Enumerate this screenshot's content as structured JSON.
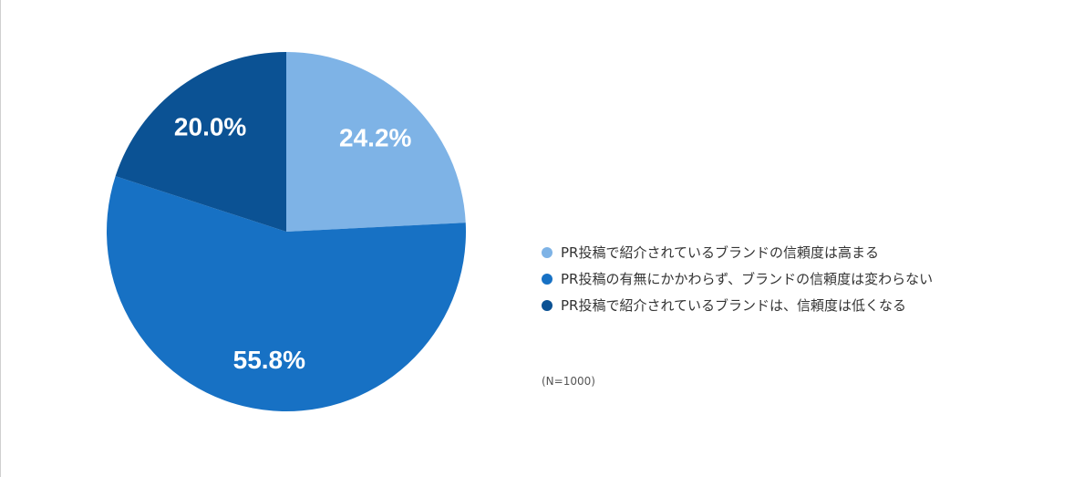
{
  "chart_data": {
    "type": "pie",
    "title": "",
    "categories": [
      "PR投稿で紹介されているブランドの信頼度は高まる",
      "PR投稿の有無にかかわらず、ブランドの信頼度は変わらない",
      "PR投稿で紹介されているブランドは、信頼度は低くなる"
    ],
    "values": [
      24.2,
      55.8,
      20.0
    ],
    "value_labels": [
      "24.2%",
      "55.8%",
      "20.0%"
    ],
    "colors": [
      "#7eb3e6",
      "#1771c4",
      "#0b5294"
    ],
    "start": "top, clockwise",
    "legend_position": "right",
    "note": "(N=1000)"
  }
}
